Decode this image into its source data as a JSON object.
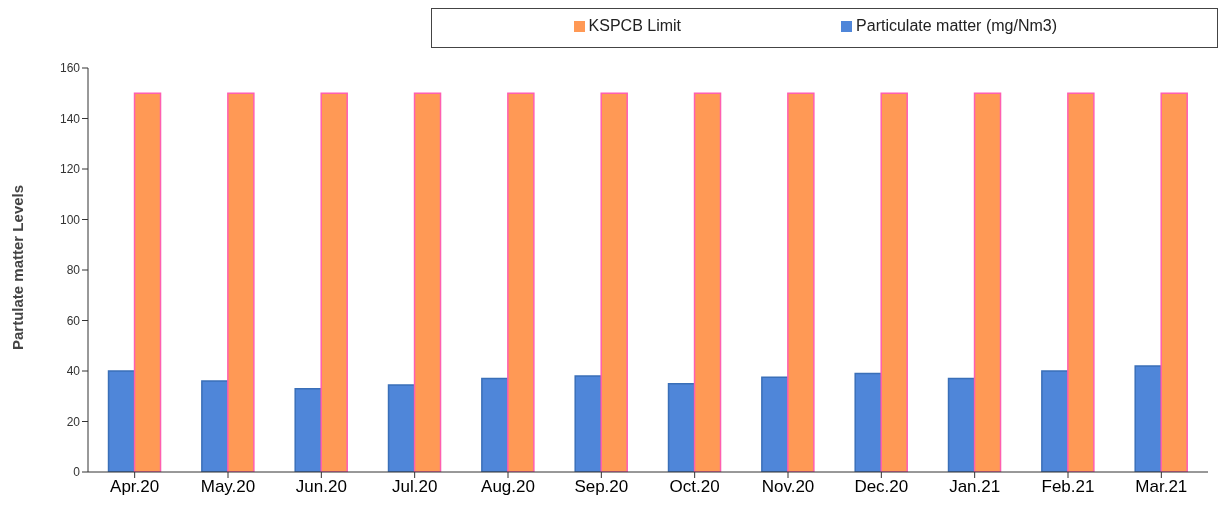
{
  "chart_data": {
    "type": "bar",
    "ylabel": "Partulate matter Levels",
    "categories": [
      "Apr.20",
      "May.20",
      "Jun.20",
      "Jul.20",
      "Aug.20",
      "Sep.20",
      "Oct.20",
      "Nov.20",
      "Dec.20",
      "Jan.21",
      "Feb.21",
      "Mar.21"
    ],
    "series": [
      {
        "name": "Particulate matter (mg/Nm3)",
        "color": "#4f86d9",
        "values": [
          40,
          36,
          33,
          34.5,
          37,
          38,
          35,
          37.5,
          39,
          37,
          40,
          42
        ]
      },
      {
        "name": "KSPCB Limit",
        "color": "#ff9955",
        "values": [
          150,
          150,
          150,
          150,
          150,
          150,
          150,
          150,
          150,
          150,
          150,
          150
        ]
      }
    ],
    "ylim": [
      0,
      160
    ],
    "yticks": [
      0,
      20,
      40,
      60,
      80,
      100,
      120,
      140,
      160
    ],
    "grid": false,
    "legend": "top right"
  }
}
